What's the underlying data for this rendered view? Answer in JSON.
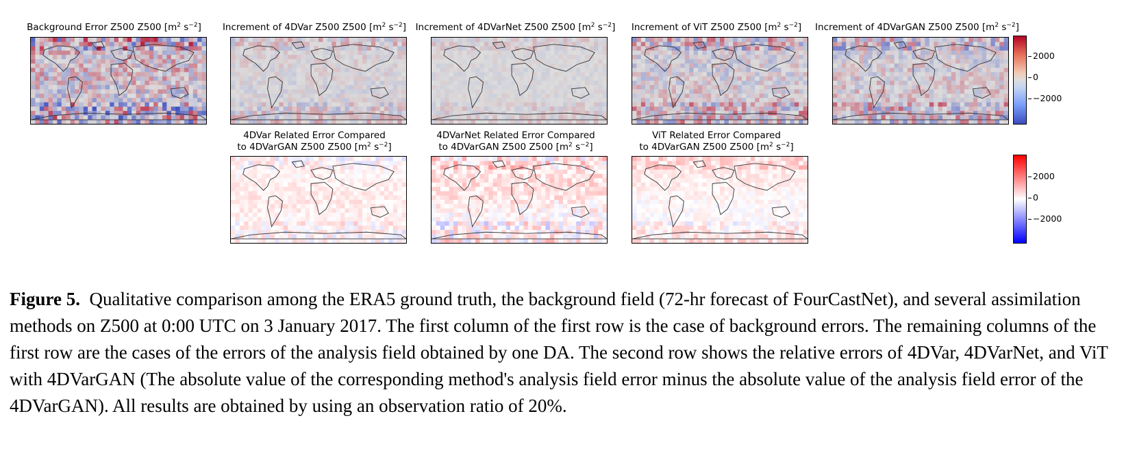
{
  "figure": {
    "panels": [
      {
        "id": "p1",
        "title": "Background Error Z500 Z500 [m",
        "title2": "",
        "scheme": "coolwarm",
        "style": "strong",
        "palette": "cw"
      },
      {
        "id": "p2",
        "title": "Increment of 4DVar Z500 Z500 [m",
        "title2": "",
        "scheme": "coolwarm",
        "style": "weak",
        "palette": "cw"
      },
      {
        "id": "p3",
        "title": "Increment of 4DVarNet Z500 Z500 [m",
        "title2": "",
        "scheme": "coolwarm",
        "style": "faint",
        "palette": "cw"
      },
      {
        "id": "p4",
        "title": "Increment of ViT Z500 Z500 [m",
        "title2": "",
        "scheme": "coolwarm",
        "style": "medium",
        "palette": "cw"
      },
      {
        "id": "p5",
        "title": "Increment of 4DVarGAN Z500 Z500 [m",
        "title2": "",
        "scheme": "coolwarm",
        "style": "medium",
        "palette": "cw"
      },
      {
        "id": "p6",
        "title": "4DVar Related Error Compared",
        "title2": "to 4DVarGAN Z500 Z500 [m",
        "scheme": "bwr",
        "style": "rel",
        "palette": "bwr"
      },
      {
        "id": "p7",
        "title": "4DVarNet Related Error Compared",
        "title2": "to 4DVarGAN Z500 Z500 [m",
        "scheme": "bwr",
        "style": "relstrong",
        "palette": "bwr"
      },
      {
        "id": "p8",
        "title": "ViT Related Error Compared",
        "title2": "to 4DVarGAN Z500 Z500 [m",
        "scheme": "bwr",
        "style": "rel",
        "palette": "bwr"
      }
    ],
    "unit_sup1": "2",
    "unit_mid": " s",
    "unit_sup2": "−2",
    "unit_close": "]",
    "colorbar1": {
      "scheme": "coolwarm",
      "ticks": [
        "2000",
        "0",
        "−2000"
      ]
    },
    "colorbar2": {
      "scheme": "bwr",
      "ticks": [
        "2000",
        "0",
        "−2000"
      ]
    }
  },
  "caption": {
    "label": "Figure 5.",
    "text": "Qualitative comparison among the ERA5 ground truth, the background field (72-hr forecast of FourCastNet), and several assimilation methods on Z500 at 0:00 UTC on 3 January 2017. The first column of the first row is the case of background errors. The remaining columns of the first row are the cases of the errors of the analysis field obtained by one DA. The second row shows the relative errors of 4DVar, 4DVarNet, and ViT with 4DVarGAN (The absolute value of the corresponding method's analysis field error minus the absolute value of the analysis field error of the 4DVarGAN). All results are obtained by using an observation ratio of 20%."
  }
}
